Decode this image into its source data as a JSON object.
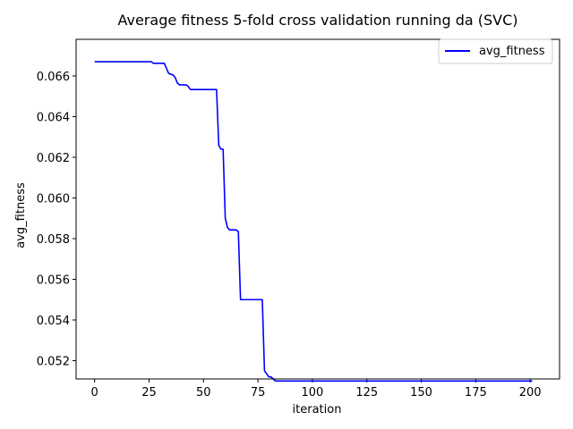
{
  "chart_data": {
    "type": "line",
    "title": "Average fitness 5-fold cross validation running da (SVC)",
    "xlabel": "iteration",
    "ylabel": "avg_fitness",
    "xlim": [
      -8.5,
      213.5
    ],
    "ylim": [
      0.0511,
      0.0678
    ],
    "xticks": [
      0,
      25,
      50,
      75,
      100,
      125,
      150,
      175,
      200
    ],
    "yticks": [
      0.052,
      0.054,
      0.056,
      0.058,
      0.06,
      0.062,
      0.064,
      0.066
    ],
    "ytick_labels": [
      "0.052",
      "0.054",
      "0.056",
      "0.058",
      "0.060",
      "0.062",
      "0.064",
      "0.066"
    ],
    "grid": false,
    "legend": "top-right",
    "series": [
      {
        "name": "avg_fitness",
        "color": "#0000ff",
        "x": [
          0,
          26,
          27,
          32,
          34,
          36,
          37,
          38,
          39,
          40,
          42,
          43,
          44,
          45,
          55,
          56,
          57,
          58,
          59,
          60,
          61,
          62,
          65,
          66,
          67,
          68,
          76,
          77,
          78,
          79,
          80,
          81,
          82,
          83,
          84,
          201
        ],
        "y": [
          0.0667,
          0.0667,
          0.06662,
          0.06662,
          0.06612,
          0.06605,
          0.06592,
          0.06565,
          0.06556,
          0.06556,
          0.06556,
          0.06548,
          0.06533,
          0.06533,
          0.06533,
          0.06533,
          0.0626,
          0.0624,
          0.0624,
          0.059,
          0.05855,
          0.05843,
          0.05843,
          0.05835,
          0.055,
          0.055,
          0.055,
          0.055,
          0.0515,
          0.05135,
          0.0512,
          0.0512,
          0.0511,
          0.051,
          0.051,
          0.051
        ]
      }
    ]
  }
}
